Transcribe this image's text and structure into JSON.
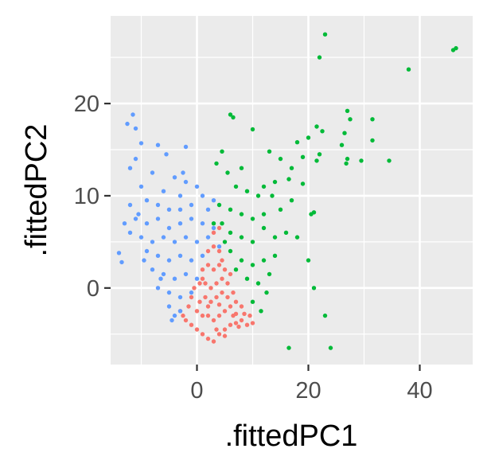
{
  "chart_data": {
    "type": "scatter",
    "title": "",
    "xlabel": ".fittedPC1",
    "ylabel": ".fittedPC2",
    "xlim": [
      -15.5,
      49.5
    ],
    "ylim": [
      -8.3,
      29.5
    ],
    "x_ticks": [
      0,
      20,
      40
    ],
    "y_ticks": [
      0,
      10,
      20
    ],
    "grid": true,
    "legend": "none",
    "panel_background": "#ebebeb",
    "grid_color": "#ffffff",
    "series": [
      {
        "color": "#f8766d",
        "points": [
          [
            2.0,
            -5.5
          ],
          [
            3.0,
            -5.8
          ],
          [
            4.0,
            -5.0
          ],
          [
            5.0,
            -4.5
          ],
          [
            6.0,
            -4.0
          ],
          [
            7.0,
            -3.8
          ],
          [
            8.0,
            -3.5
          ],
          [
            9.0,
            -4.0
          ],
          [
            10.0,
            -3.8
          ],
          [
            0.0,
            -4.5
          ],
          [
            -1.0,
            -4.0
          ],
          [
            -2.0,
            -3.5
          ],
          [
            -3.0,
            -2.5
          ],
          [
            1.0,
            -3.0
          ],
          [
            2.0,
            -3.0
          ],
          [
            3.0,
            -3.5
          ],
          [
            4.0,
            -3.0
          ],
          [
            5.0,
            -2.5
          ],
          [
            6.0,
            -2.0
          ],
          [
            7.0,
            -1.5
          ],
          [
            8.0,
            -2.0
          ],
          [
            0.5,
            -1.5
          ],
          [
            1.5,
            -1.0
          ],
          [
            2.5,
            -1.5
          ],
          [
            3.5,
            -1.0
          ],
          [
            4.5,
            -0.5
          ],
          [
            5.5,
            -1.0
          ],
          [
            6.5,
            -0.5
          ],
          [
            -1.0,
            -1.0
          ],
          [
            -0.5,
            0.0
          ],
          [
            0.5,
            0.5
          ],
          [
            1.5,
            0.5
          ],
          [
            2.5,
            0.0
          ],
          [
            3.5,
            0.5
          ],
          [
            4.5,
            1.0
          ],
          [
            5.5,
            0.5
          ],
          [
            6.0,
            1.5
          ],
          [
            1.0,
            2.0
          ],
          [
            2.0,
            2.5
          ],
          [
            3.0,
            2.0
          ],
          [
            4.0,
            2.5
          ],
          [
            5.0,
            2.0
          ],
          [
            2.0,
            4.0
          ],
          [
            3.0,
            4.5
          ],
          [
            4.0,
            4.0
          ],
          [
            3.0,
            6.0
          ],
          [
            4.0,
            6.5
          ],
          [
            -2.5,
            -3.0
          ],
          [
            9.5,
            -3.0
          ],
          [
            8.5,
            -2.8
          ],
          [
            7.5,
            -4.2
          ],
          [
            1.0,
            -5.0
          ],
          [
            -1.5,
            -2.0
          ],
          [
            6.5,
            -3.0
          ],
          [
            5.0,
            -5.2
          ],
          [
            3.5,
            -4.5
          ],
          [
            2.0,
            -2.0
          ],
          [
            4.0,
            -1.8
          ],
          [
            1.0,
            1.0
          ],
          [
            0.0,
            -2.5
          ],
          [
            7.0,
            -2.8
          ],
          [
            4.5,
            3.0
          ]
        ]
      },
      {
        "color": "#00ba38",
        "points": [
          [
            23.0,
            27.5
          ],
          [
            46.5,
            26.0
          ],
          [
            46.0,
            25.8
          ],
          [
            22.0,
            25.0
          ],
          [
            38.0,
            23.7
          ],
          [
            27.0,
            19.2
          ],
          [
            31.5,
            18.3
          ],
          [
            6.0,
            18.8
          ],
          [
            6.5,
            18.5
          ],
          [
            10.0,
            17.2
          ],
          [
            21.5,
            17.5
          ],
          [
            22.5,
            17.0
          ],
          [
            26.5,
            16.8
          ],
          [
            27.5,
            18.3
          ],
          [
            18.0,
            15.8
          ],
          [
            20.0,
            16.3
          ],
          [
            26.0,
            15.5
          ],
          [
            31.5,
            16.0
          ],
          [
            19.0,
            14.2
          ],
          [
            22.0,
            14.5
          ],
          [
            27.0,
            14.0
          ],
          [
            13.0,
            14.8
          ],
          [
            15.0,
            14.0
          ],
          [
            21.5,
            13.8
          ],
          [
            26.8,
            13.5
          ],
          [
            29.5,
            13.8
          ],
          [
            34.5,
            13.8
          ],
          [
            17.0,
            13.0
          ],
          [
            8.0,
            13.0
          ],
          [
            4.5,
            14.8
          ],
          [
            3.5,
            13.5
          ],
          [
            5.5,
            12.5
          ],
          [
            12.0,
            11.0
          ],
          [
            14.0,
            11.5
          ],
          [
            16.5,
            11.8
          ],
          [
            19.0,
            11.3
          ],
          [
            7.0,
            11.0
          ],
          [
            9.0,
            10.5
          ],
          [
            11.0,
            10.0
          ],
          [
            13.5,
            10.0
          ],
          [
            20.5,
            8.0
          ],
          [
            21.0,
            8.2
          ],
          [
            17.0,
            9.5
          ],
          [
            15.0,
            8.5
          ],
          [
            12.0,
            8.0
          ],
          [
            10.0,
            7.5
          ],
          [
            8.0,
            8.0
          ],
          [
            6.0,
            8.5
          ],
          [
            4.0,
            9.0
          ],
          [
            18.0,
            5.5
          ],
          [
            16.0,
            6.0
          ],
          [
            14.0,
            5.5
          ],
          [
            12.0,
            6.5
          ],
          [
            10.0,
            5.0
          ],
          [
            8.0,
            5.5
          ],
          [
            6.0,
            6.0
          ],
          [
            5.0,
            5.0
          ],
          [
            3.0,
            7.0
          ],
          [
            20.0,
            3.0
          ],
          [
            14.0,
            3.5
          ],
          [
            12.0,
            3.0
          ],
          [
            10.0,
            2.5
          ],
          [
            8.0,
            3.0
          ],
          [
            7.0,
            2.0
          ],
          [
            9.0,
            1.0
          ],
          [
            11.0,
            0.5
          ],
          [
            13.0,
            1.5
          ],
          [
            10.0,
            -1.5
          ],
          [
            11.5,
            -2.5
          ],
          [
            12.5,
            -0.5
          ],
          [
            21.0,
            0.0
          ],
          [
            23.0,
            -3.0
          ],
          [
            16.5,
            -6.5
          ],
          [
            24.0,
            -6.5
          ],
          [
            6.0,
            4.0
          ],
          [
            4.5,
            7.0
          ]
        ]
      },
      {
        "color": "#619cff",
        "points": [
          [
            -11.5,
            18.8
          ],
          [
            -12.5,
            17.8
          ],
          [
            -11.0,
            17.3
          ],
          [
            -10.0,
            15.7
          ],
          [
            -7.0,
            15.5
          ],
          [
            -2.0,
            15.3
          ],
          [
            -11.0,
            14.0
          ],
          [
            -5.5,
            14.5
          ],
          [
            -12.0,
            13.0
          ],
          [
            -8.0,
            12.5
          ],
          [
            -4.0,
            12.0
          ],
          [
            -2.0,
            11.5
          ],
          [
            0.0,
            11.0
          ],
          [
            -10.0,
            11.0
          ],
          [
            -6.0,
            10.5
          ],
          [
            -3.0,
            10.0
          ],
          [
            1.0,
            10.0
          ],
          [
            -12.0,
            9.0
          ],
          [
            -9.0,
            9.5
          ],
          [
            -7.0,
            9.0
          ],
          [
            -5.0,
            8.5
          ],
          [
            -3.0,
            8.5
          ],
          [
            -1.0,
            9.0
          ],
          [
            2.0,
            8.5
          ],
          [
            3.0,
            9.5
          ],
          [
            -13.0,
            7.0
          ],
          [
            -11.0,
            7.5
          ],
          [
            -9.0,
            7.0
          ],
          [
            -7.0,
            7.5
          ],
          [
            -5.0,
            6.5
          ],
          [
            -3.0,
            7.0
          ],
          [
            -1.0,
            7.5
          ],
          [
            1.0,
            7.0
          ],
          [
            3.0,
            6.5
          ],
          [
            -12.0,
            6.0
          ],
          [
            -10.0,
            5.5
          ],
          [
            -8.0,
            5.0
          ],
          [
            -6.0,
            5.5
          ],
          [
            -4.0,
            5.0
          ],
          [
            -2.0,
            5.5
          ],
          [
            0.0,
            5.0
          ],
          [
            2.0,
            5.5
          ],
          [
            4.0,
            4.5
          ],
          [
            -9.0,
            4.0
          ],
          [
            -7.0,
            3.5
          ],
          [
            -5.0,
            3.0
          ],
          [
            -3.0,
            3.5
          ],
          [
            -1.0,
            3.0
          ],
          [
            1.0,
            3.5
          ],
          [
            -8.0,
            2.0
          ],
          [
            -6.0,
            1.5
          ],
          [
            -4.0,
            1.0
          ],
          [
            -2.0,
            1.5
          ],
          [
            0.0,
            1.0
          ],
          [
            -7.0,
            0.0
          ],
          [
            -5.0,
            -0.5
          ],
          [
            -3.0,
            -1.0
          ],
          [
            -1.0,
            -0.5
          ],
          [
            -5.0,
            -2.0
          ],
          [
            -4.0,
            -3.0
          ],
          [
            -3.0,
            -2.5
          ],
          [
            -14.0,
            3.8
          ],
          [
            -13.5,
            2.8
          ],
          [
            -4.5,
            -3.5
          ],
          [
            -6.5,
            1.0
          ],
          [
            -10.5,
            8.0
          ],
          [
            -9.5,
            3.0
          ],
          [
            -2.5,
            12.5
          ]
        ]
      }
    ]
  }
}
